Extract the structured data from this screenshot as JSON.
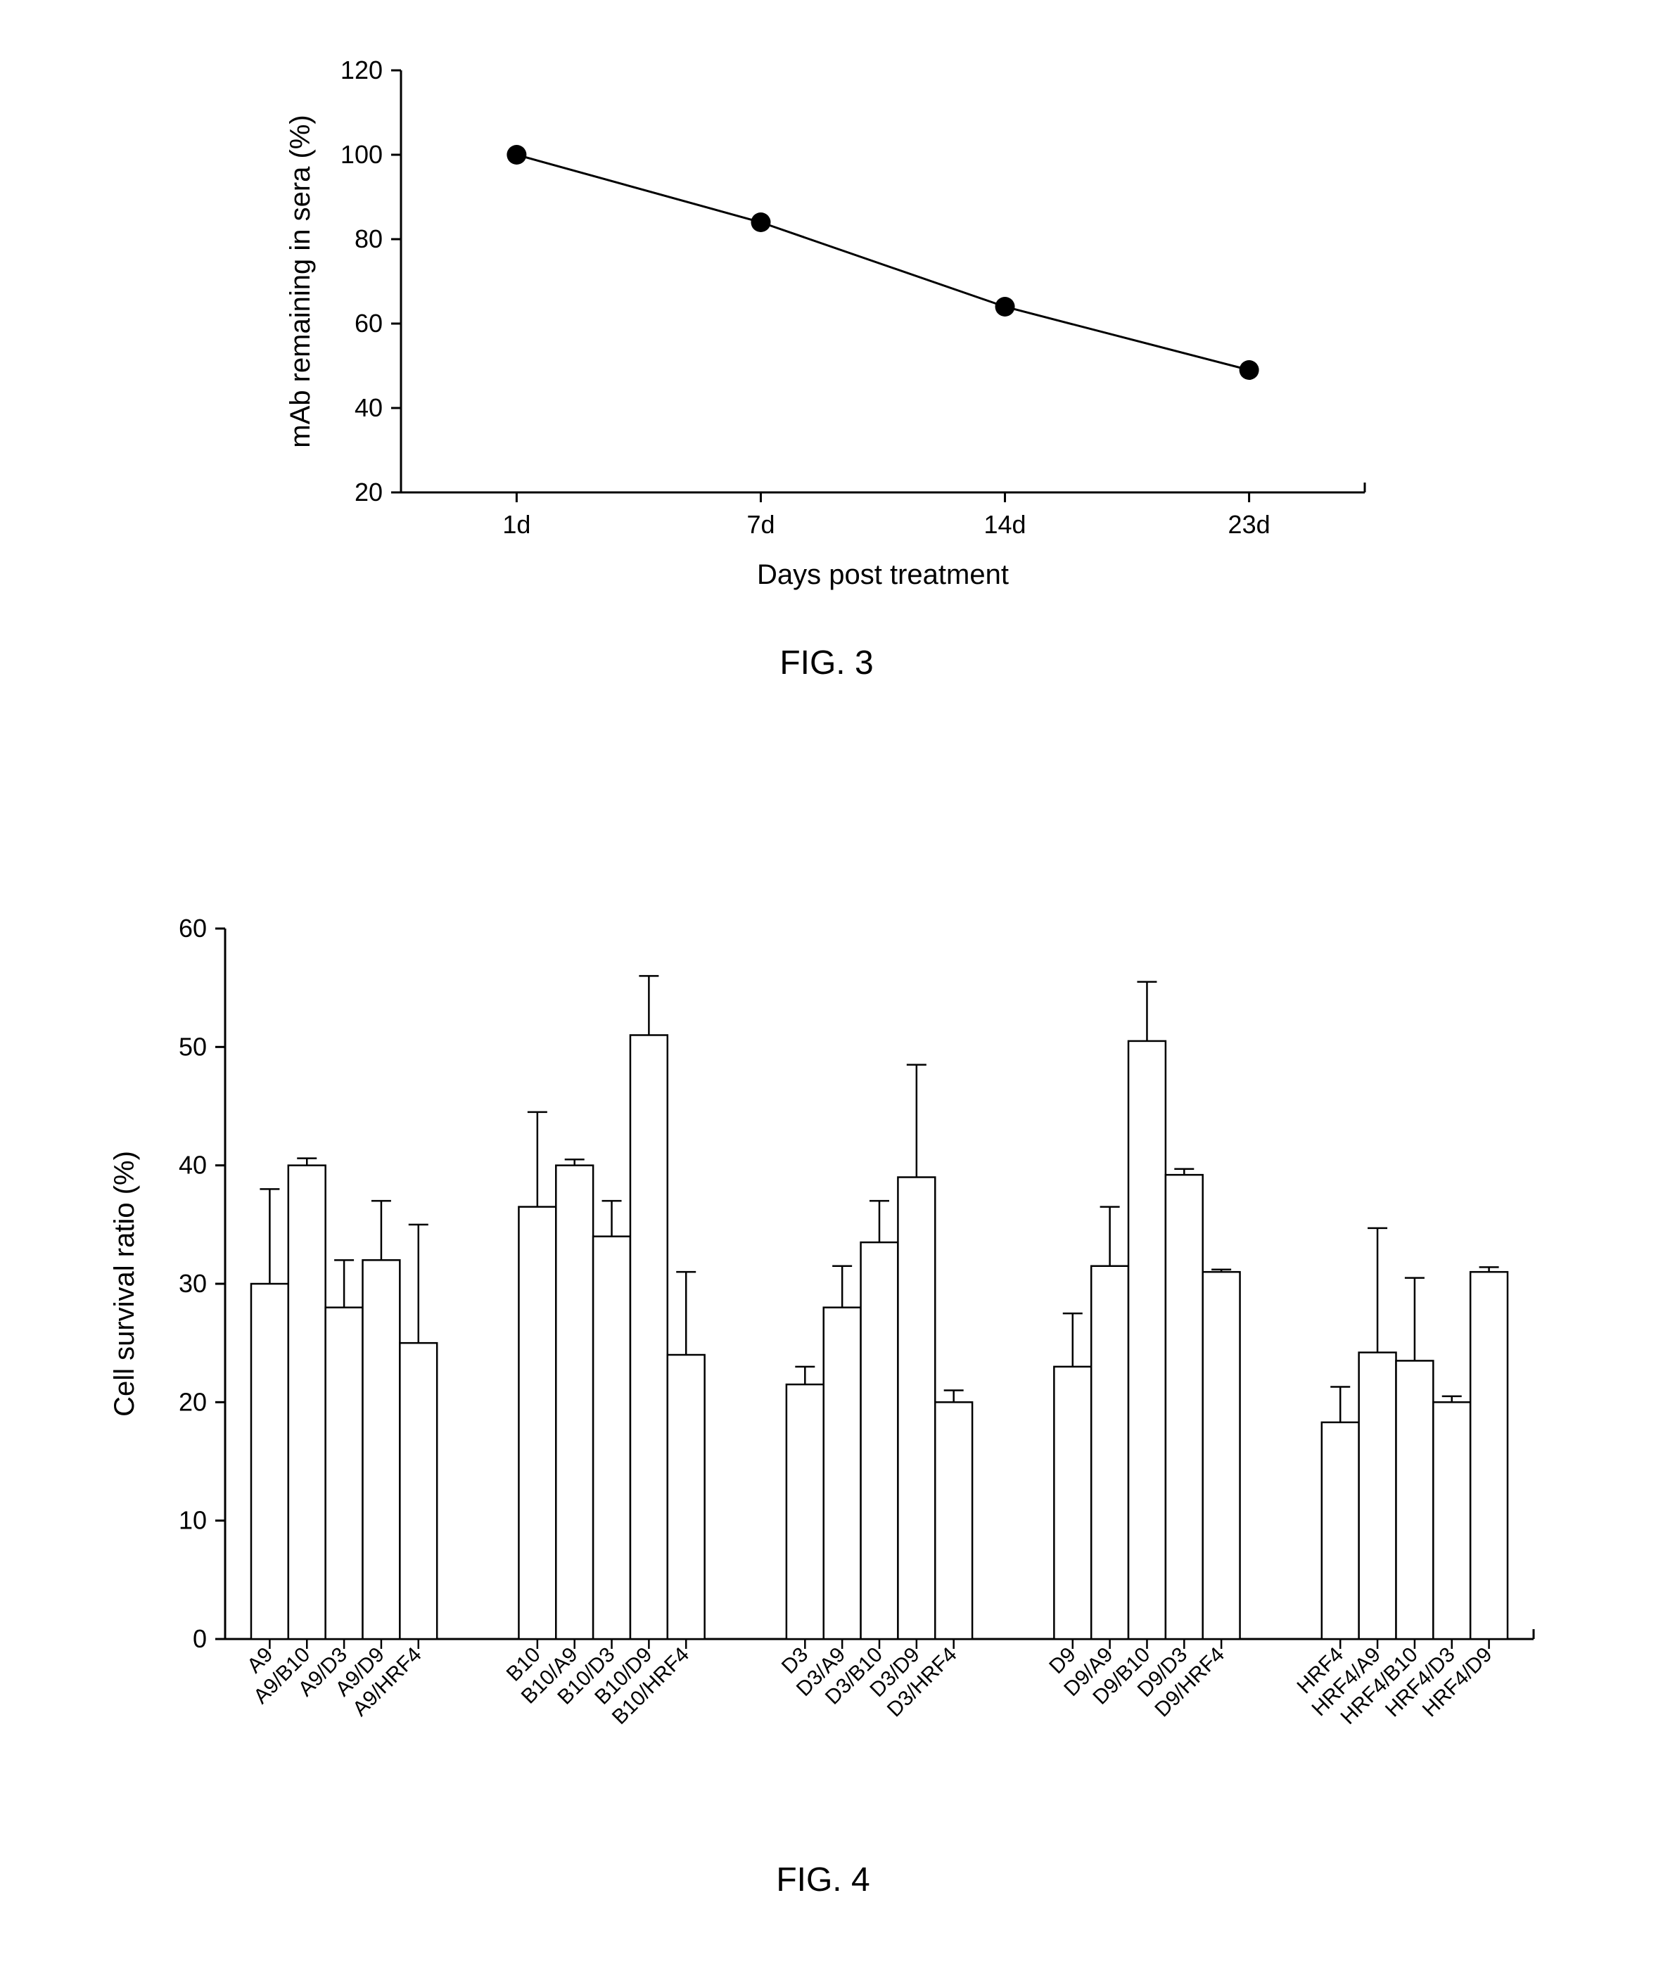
{
  "fig3": {
    "type": "line",
    "caption": "FIG. 3",
    "ylabel": "mAb remaining in sera (%)",
    "xlabel": "Days post treatment",
    "label_fontsize": 40,
    "tick_fontsize": 36,
    "ylim": [
      20,
      120
    ],
    "ytick_step": 20,
    "yticks": [
      20,
      40,
      60,
      80,
      100,
      120
    ],
    "xcategories": [
      "1d",
      "7d",
      "14d",
      "23d"
    ],
    "values": [
      100,
      84,
      64,
      49
    ],
    "line_color": "#000000",
    "line_width": 3,
    "marker_radius": 14,
    "marker_color": "#000000",
    "background_color": "#ffffff",
    "axis_color": "#000000",
    "tick_len": 14
  },
  "fig4": {
    "type": "bar",
    "caption": "FIG. 4",
    "ylabel": "Cell survival ratio (%)",
    "label_fontsize": 40,
    "tick_fontsize": 36,
    "ylim": [
      0,
      60
    ],
    "ytick_step": 10,
    "yticks": [
      0,
      10,
      20,
      30,
      40,
      50,
      60
    ],
    "bar_fill": "#ffffff",
    "bar_stroke": "#000000",
    "bar_stroke_width": 2.5,
    "err_width": 2.5,
    "err_cap": 14,
    "axis_color": "#000000",
    "background_color": "#ffffff",
    "tick_len": 14,
    "xlabel_fontsize": 30,
    "xlabel_angle": -45,
    "groups": [
      {
        "labels": [
          "A9",
          "A9/B10",
          "A9/D3",
          "A9/D9",
          "A9/HRF4"
        ],
        "values": [
          30,
          40,
          28,
          32,
          25
        ],
        "errors": [
          8,
          0.6,
          4,
          5,
          10
        ]
      },
      {
        "labels": [
          "B10",
          "B10/A9",
          "B10/D3",
          "B10/D9",
          "B10/HRF4"
        ],
        "values": [
          36.5,
          40,
          34,
          51,
          24
        ],
        "errors": [
          8,
          0.5,
          3,
          5,
          7
        ]
      },
      {
        "labels": [
          "D3",
          "D3/A9",
          "D3/B10",
          "D3/D9",
          "D3/HRF4"
        ],
        "values": [
          21.5,
          28,
          33.5,
          39,
          20
        ],
        "errors": [
          1.5,
          3.5,
          3.5,
          9.5,
          1
        ]
      },
      {
        "labels": [
          "D9",
          "D9/A9",
          "D9/B10",
          "D9/D3",
          "D9/HRF4"
        ],
        "values": [
          23,
          31.5,
          50.5,
          39.2,
          31
        ],
        "errors": [
          4.5,
          5,
          5,
          0.5,
          0.2
        ]
      },
      {
        "labels": [
          "HRF4",
          "HRF4/A9",
          "HRF4/B10",
          "HRF4/D3",
          "HRF4/D9"
        ],
        "values": [
          18.3,
          24.2,
          23.5,
          20,
          31
        ],
        "errors": [
          3,
          10.5,
          7,
          0.5,
          0.4
        ]
      }
    ]
  }
}
